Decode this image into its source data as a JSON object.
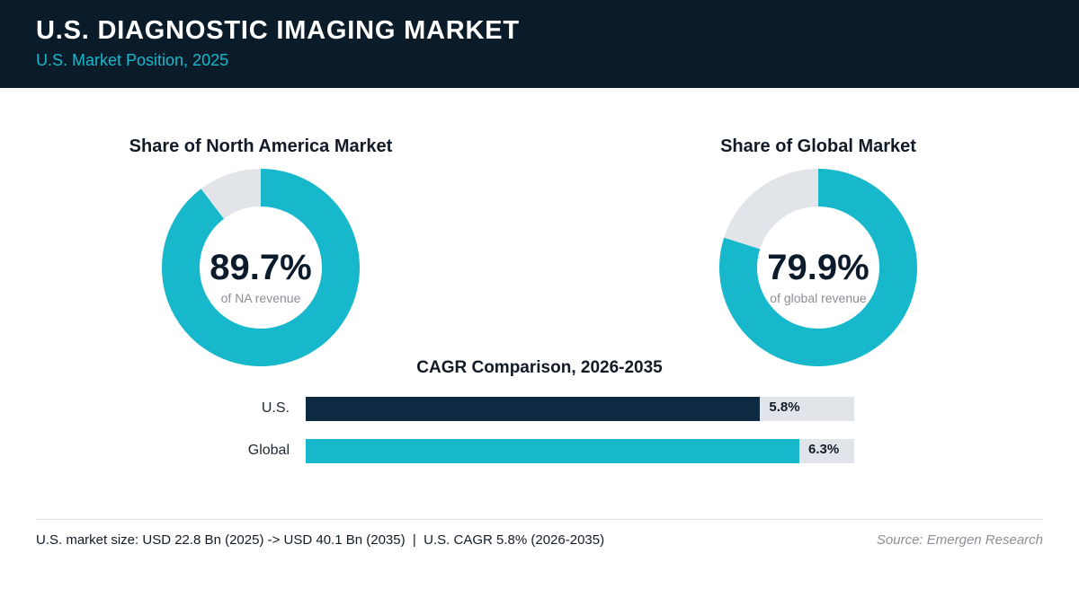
{
  "header": {
    "title": "U.S. DIAGNOSTIC IMAGING MARKET",
    "subtitle": "U.S. Market Position, 2025"
  },
  "colors": {
    "header_bg": "#0a1b2a",
    "accent_teal": "#17b8cc",
    "navy": "#0e2a42",
    "track_grey": "#e1e5ea"
  },
  "chart_data": [
    {
      "type": "pie",
      "variant": "donut",
      "title": "Share of North America Market",
      "center_value": "89.7%",
      "center_caption": "of NA revenue",
      "values": [
        89.7,
        10.3
      ],
      "colors": [
        "#17b8cc",
        "#e1e5ea"
      ]
    },
    {
      "type": "pie",
      "variant": "donut",
      "title": "Share of Global Market",
      "center_value": "79.9%",
      "center_caption": "of global revenue",
      "values": [
        79.9,
        20.1
      ],
      "colors": [
        "#17b8cc",
        "#e1e5ea"
      ]
    },
    {
      "type": "bar",
      "orientation": "horizontal",
      "title": "CAGR Comparison, 2026-2035",
      "categories": [
        "U.S.",
        "Global"
      ],
      "values": [
        5.8,
        6.3
      ],
      "value_labels": [
        "5.8%",
        "6.3%"
      ],
      "colors": [
        "#0e2a42",
        "#17b8cc"
      ],
      "xlim": [
        0,
        7.0
      ]
    }
  ],
  "footer": {
    "note": "U.S. market size: USD 22.8 Bn (2025) -> USD 40.1 Bn (2035)  |  U.S. CAGR 5.8% (2026-2035)",
    "source": "Source: Emergen Research"
  }
}
